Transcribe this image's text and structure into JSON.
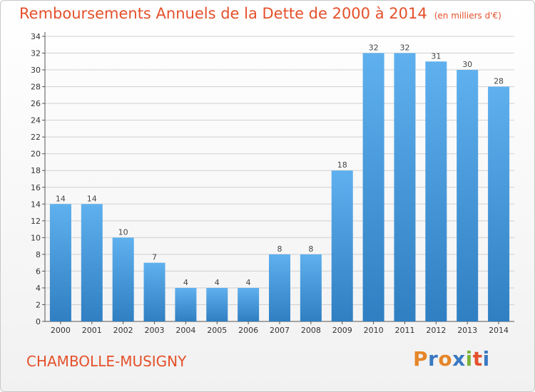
{
  "title": "Remboursements Annuels de la Dette de 2000 à 2014",
  "unit": "(en milliers d'€)",
  "commune": "CHAMBOLLE-MUSIGNY",
  "logo": {
    "text": "Proxiti",
    "colors": [
      "#e5862a",
      "#3a79c2",
      "#e5862a",
      "#3a79c2",
      "#7bb33a",
      "#e4502b",
      "#3a79c2"
    ]
  },
  "colors": {
    "title": "#e4502b",
    "bar_light": "#5fb0ee",
    "bar_dark": "#2f7fc2",
    "grid": "#d0d0d0"
  },
  "chart_data": {
    "type": "bar",
    "categories": [
      "2000",
      "2001",
      "2002",
      "2003",
      "2004",
      "2005",
      "2006",
      "2007",
      "2008",
      "2009",
      "2010",
      "2011",
      "2012",
      "2013",
      "2014"
    ],
    "values": [
      14,
      14,
      10,
      7,
      4,
      4,
      4,
      8,
      8,
      18,
      32,
      32,
      31,
      30,
      28
    ],
    "title": "Remboursements Annuels de la Dette de 2000 à 2014",
    "xlabel": "",
    "ylabel": "",
    "ylim": [
      0,
      34
    ],
    "yticks": [
      0,
      2,
      4,
      6,
      8,
      10,
      12,
      14,
      16,
      18,
      20,
      22,
      24,
      26,
      28,
      30,
      32,
      34
    ],
    "grid": true,
    "legend": "none"
  }
}
